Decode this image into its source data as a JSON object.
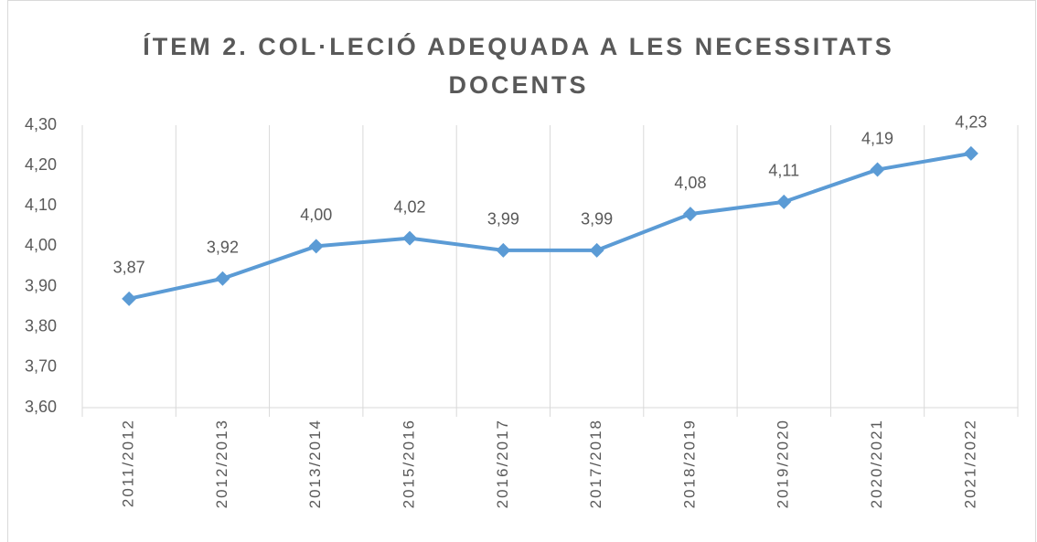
{
  "chart_data": {
    "type": "line",
    "title": "ÍTEM 2. COL·LECIÓ ADEQUADA A LES NECESSITATS DOCENTS",
    "categories": [
      "2011/2012",
      "2012/2013",
      "2013/2014",
      "2015/2016",
      "2016/2017",
      "2017/2018",
      "2018/2019",
      "2019/2020",
      "2020/2021",
      "2021/2022"
    ],
    "series": [
      {
        "name": "Ítem 2",
        "color": "#5b9bd5",
        "values": [
          3.87,
          3.92,
          4.0,
          4.02,
          3.99,
          3.99,
          4.08,
          4.11,
          4.19,
          4.23
        ],
        "value_labels": [
          "3,87",
          "3,92",
          "4,00",
          "4,02",
          "3,99",
          "3,99",
          "4,08",
          "4,11",
          "4,19",
          "4,23"
        ]
      }
    ],
    "ylim": [
      3.6,
      4.3
    ],
    "yticks": [
      {
        "value": 3.6,
        "label": "3,60"
      },
      {
        "value": 3.7,
        "label": "3,70"
      },
      {
        "value": 3.8,
        "label": "3,80"
      },
      {
        "value": 3.9,
        "label": "3,90"
      },
      {
        "value": 4.0,
        "label": "4,00"
      },
      {
        "value": 4.1,
        "label": "4,10"
      },
      {
        "value": 4.2,
        "label": "4,20"
      },
      {
        "value": 4.3,
        "label": "4,30"
      }
    ],
    "grid": "x"
  }
}
